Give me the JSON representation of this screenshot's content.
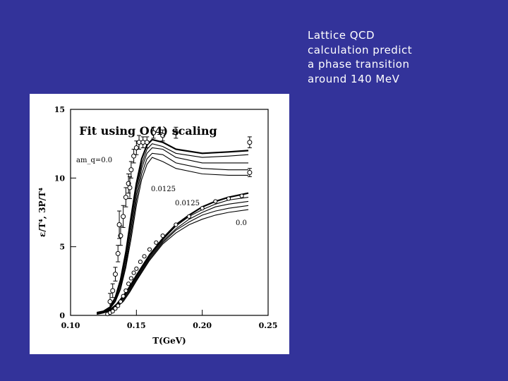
{
  "slide": {
    "caption_lines": [
      "Lattice QCD",
      "calculation predict",
      "a phase transition",
      "around 140 MeV"
    ]
  },
  "colors": {
    "background": "#33339a",
    "text": "#ffffff",
    "figure": "#ffffff"
  },
  "chart_data": {
    "type": "line",
    "title": "Fit using O(4) scaling",
    "xlabel": "T(GeV)",
    "ylabel": "ε/T⁴, 3P/T⁴",
    "xlim": [
      0.1,
      0.25
    ],
    "ylim": [
      0,
      15
    ],
    "x_ticks": [
      "0.10",
      "0.15",
      "0.20",
      "0.25"
    ],
    "y_ticks": [
      "0",
      "5",
      "10",
      "15"
    ],
    "grid": false,
    "annotations": [
      {
        "text": "am_q=0.0",
        "x": 0.12,
        "y": 12.5
      },
      {
        "text": "0.0125",
        "x": 0.165,
        "y": 10.0
      },
      {
        "text": "0.0125",
        "x": 0.19,
        "y": 9.1
      },
      {
        "text": "0.0",
        "x": 0.23,
        "y": 7.6
      }
    ],
    "series": [
      {
        "x": [
          0.12,
          0.125,
          0.13,
          0.134,
          0.138,
          0.142,
          0.146,
          0.15,
          0.154,
          0.158,
          0.162,
          0.17,
          0.18,
          0.2,
          0.22,
          0.235
        ],
        "y": [
          0.2,
          0.3,
          0.6,
          1.3,
          2.6,
          4.6,
          7.2,
          9.6,
          11.4,
          12.4,
          12.8,
          12.6,
          12.1,
          11.8,
          11.9,
          12.0
        ]
      },
      {
        "x": [
          0.12,
          0.125,
          0.13,
          0.134,
          0.138,
          0.142,
          0.146,
          0.15,
          0.154,
          0.158,
          0.162,
          0.17,
          0.18,
          0.2,
          0.22,
          0.235
        ],
        "y": [
          0.2,
          0.3,
          0.6,
          1.2,
          2.4,
          4.3,
          6.8,
          9.2,
          11.0,
          12.1,
          12.5,
          12.3,
          11.8,
          11.5,
          11.6,
          11.7
        ]
      },
      {
        "x": [
          0.12,
          0.125,
          0.13,
          0.134,
          0.138,
          0.142,
          0.146,
          0.15,
          0.154,
          0.158,
          0.162,
          0.17,
          0.18,
          0.2,
          0.22,
          0.235
        ],
        "y": [
          0.2,
          0.3,
          0.5,
          1.1,
          2.2,
          4.0,
          6.4,
          8.8,
          10.7,
          11.8,
          12.2,
          12.1,
          11.5,
          11.1,
          11.1,
          11.1
        ]
      },
      {
        "x": [
          0.12,
          0.125,
          0.13,
          0.134,
          0.138,
          0.142,
          0.146,
          0.15,
          0.154,
          0.158,
          0.162,
          0.17,
          0.18,
          0.2,
          0.22,
          0.235
        ],
        "y": [
          0.2,
          0.3,
          0.5,
          1.0,
          2.0,
          3.7,
          6.0,
          8.4,
          10.3,
          11.4,
          11.8,
          11.7,
          11.1,
          10.7,
          10.6,
          10.6
        ]
      },
      {
        "x": [
          0.12,
          0.125,
          0.13,
          0.134,
          0.138,
          0.142,
          0.146,
          0.15,
          0.154,
          0.158,
          0.162,
          0.17,
          0.18,
          0.2,
          0.22,
          0.235
        ],
        "y": [
          0.2,
          0.3,
          0.5,
          1.0,
          1.9,
          3.5,
          5.6,
          8.0,
          9.9,
          11.0,
          11.5,
          11.2,
          10.7,
          10.3,
          10.2,
          10.2
        ]
      },
      {
        "x": [
          0.12,
          0.125,
          0.13,
          0.135,
          0.14,
          0.145,
          0.15,
          0.16,
          0.17,
          0.18,
          0.19,
          0.2,
          0.21,
          0.22,
          0.235
        ],
        "y": [
          0.1,
          0.2,
          0.4,
          0.8,
          1.4,
          2.1,
          2.9,
          4.4,
          5.6,
          6.6,
          7.3,
          7.9,
          8.3,
          8.6,
          8.9
        ]
      },
      {
        "x": [
          0.12,
          0.125,
          0.13,
          0.135,
          0.14,
          0.145,
          0.15,
          0.16,
          0.17,
          0.18,
          0.19,
          0.2,
          0.21,
          0.22,
          0.235
        ],
        "y": [
          0.1,
          0.2,
          0.4,
          0.7,
          1.3,
          2.0,
          2.8,
          4.3,
          5.5,
          6.5,
          7.2,
          7.7,
          8.1,
          8.4,
          8.6
        ]
      },
      {
        "x": [
          0.12,
          0.125,
          0.13,
          0.135,
          0.14,
          0.145,
          0.15,
          0.16,
          0.17,
          0.18,
          0.19,
          0.2,
          0.21,
          0.22,
          0.235
        ],
        "y": [
          0.1,
          0.2,
          0.3,
          0.7,
          1.2,
          1.9,
          2.7,
          4.2,
          5.4,
          6.3,
          7.0,
          7.5,
          7.9,
          8.1,
          8.3
        ]
      },
      {
        "x": [
          0.12,
          0.125,
          0.13,
          0.135,
          0.14,
          0.145,
          0.15,
          0.16,
          0.17,
          0.18,
          0.19,
          0.2,
          0.21,
          0.22,
          0.235
        ],
        "y": [
          0.1,
          0.2,
          0.3,
          0.6,
          1.1,
          1.8,
          2.6,
          4.1,
          5.3,
          6.2,
          6.8,
          7.3,
          7.6,
          7.8,
          8.0
        ]
      },
      {
        "x": [
          0.12,
          0.125,
          0.13,
          0.135,
          0.14,
          0.145,
          0.15,
          0.16,
          0.17,
          0.18,
          0.19,
          0.2,
          0.21,
          0.22,
          0.235
        ],
        "y": [
          0.1,
          0.2,
          0.3,
          0.6,
          1.0,
          1.7,
          2.5,
          4.0,
          5.2,
          6.0,
          6.6,
          7.0,
          7.3,
          7.5,
          7.7
        ]
      }
    ],
    "points_with_errors": [
      {
        "x": 0.13,
        "y": 1.0,
        "err": 0.6
      },
      {
        "x": 0.132,
        "y": 1.8,
        "err": 0.5
      },
      {
        "x": 0.134,
        "y": 3.0,
        "err": 0.5
      },
      {
        "x": 0.136,
        "y": 4.5,
        "err": 0.6
      },
      {
        "x": 0.138,
        "y": 5.8,
        "err": 0.7
      },
      {
        "x": 0.14,
        "y": 7.2,
        "err": 0.8
      },
      {
        "x": 0.142,
        "y": 8.6,
        "err": 0.7
      },
      {
        "x": 0.144,
        "y": 9.6,
        "err": 0.7
      },
      {
        "x": 0.146,
        "y": 10.6,
        "err": 0.6
      },
      {
        "x": 0.148,
        "y": 11.6,
        "err": 0.5
      },
      {
        "x": 0.15,
        "y": 12.2,
        "err": 0.5
      },
      {
        "x": 0.152,
        "y": 12.6,
        "err": 0.5
      },
      {
        "x": 0.155,
        "y": 12.6,
        "err": 0.4
      },
      {
        "x": 0.158,
        "y": 12.6,
        "err": 0.4
      },
      {
        "x": 0.163,
        "y": 13.3,
        "err": 0.4
      },
      {
        "x": 0.17,
        "y": 13.1,
        "err": 0.4
      },
      {
        "x": 0.18,
        "y": 13.3,
        "err": 0.4
      },
      {
        "x": 0.145,
        "y": 9.3,
        "err": 0.8
      },
      {
        "x": 0.137,
        "y": 6.6,
        "err": 1.0
      },
      {
        "x": 0.236,
        "y": 12.6,
        "err": 0.4
      },
      {
        "x": 0.236,
        "y": 10.4,
        "err": 0.3
      }
    ],
    "points": [
      {
        "x": 0.128,
        "y": 0.1
      },
      {
        "x": 0.13,
        "y": 0.2
      },
      {
        "x": 0.132,
        "y": 0.3
      },
      {
        "x": 0.134,
        "y": 0.5
      },
      {
        "x": 0.136,
        "y": 0.7
      },
      {
        "x": 0.138,
        "y": 1.0
      },
      {
        "x": 0.14,
        "y": 1.4
      },
      {
        "x": 0.142,
        "y": 1.8
      },
      {
        "x": 0.144,
        "y": 2.3
      },
      {
        "x": 0.146,
        "y": 2.7
      },
      {
        "x": 0.148,
        "y": 3.1
      },
      {
        "x": 0.15,
        "y": 3.4
      },
      {
        "x": 0.153,
        "y": 3.9
      },
      {
        "x": 0.156,
        "y": 4.3
      },
      {
        "x": 0.16,
        "y": 4.8
      },
      {
        "x": 0.165,
        "y": 5.3
      },
      {
        "x": 0.17,
        "y": 5.8
      },
      {
        "x": 0.18,
        "y": 6.6
      },
      {
        "x": 0.19,
        "y": 7.2
      },
      {
        "x": 0.2,
        "y": 7.8
      },
      {
        "x": 0.21,
        "y": 8.3
      },
      {
        "x": 0.22,
        "y": 8.5
      },
      {
        "x": 0.23,
        "y": 8.7
      }
    ]
  }
}
